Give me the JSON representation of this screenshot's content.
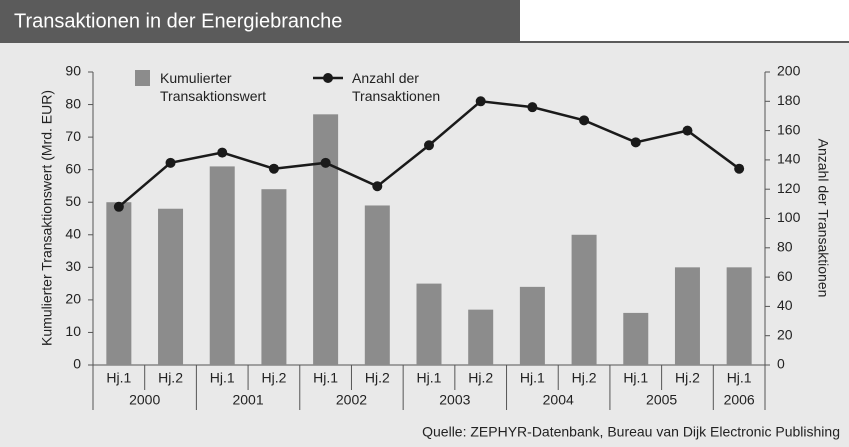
{
  "chart_data": {
    "type": "bar_line",
    "title": "Transaktionen in der Energiebranche",
    "categories": [
      "Hj.1",
      "Hj.2",
      "Hj.1",
      "Hj.2",
      "Hj.1",
      "Hj.2",
      "Hj.1",
      "Hj.2",
      "Hj.1",
      "Hj.2",
      "Hj.1",
      "Hj.2",
      "Hj.1"
    ],
    "x_groups": [
      {
        "label": "2000",
        "count": 2
      },
      {
        "label": "2001",
        "count": 2
      },
      {
        "label": "2002",
        "count": 2
      },
      {
        "label": "2003",
        "count": 2
      },
      {
        "label": "2004",
        "count": 2
      },
      {
        "label": "2005",
        "count": 2
      },
      {
        "label": "2006",
        "count": 1
      }
    ],
    "series": [
      {
        "name": "Kumulierter Transaktionswert",
        "type": "bar",
        "color": "#8c8c8c",
        "values": [
          50,
          48,
          61,
          54,
          77,
          49,
          25,
          17,
          24,
          40,
          16,
          30,
          30
        ]
      },
      {
        "name": "Anzahl der Transaktionen",
        "type": "line",
        "axis": "y2",
        "color": "#1a1a1a",
        "values": [
          108,
          138,
          145,
          134,
          138,
          122,
          150,
          180,
          176,
          167,
          152,
          160,
          134
        ]
      }
    ],
    "ylabel": "Kumulierter Transaktionswert (Mrd. EUR)",
    "y2label": "Anzahl der Transaktionen",
    "ylim": [
      0,
      90
    ],
    "yticks": [
      0,
      10,
      20,
      30,
      40,
      50,
      60,
      70,
      80,
      90
    ],
    "y2lim": [
      0,
      200
    ],
    "y2ticks": [
      0,
      20,
      40,
      60,
      80,
      100,
      120,
      140,
      160,
      180,
      200
    ],
    "grid": false,
    "source": "Quelle: ZEPHYR-Datenbank, Bureau van Dijk Electronic Publishing"
  }
}
